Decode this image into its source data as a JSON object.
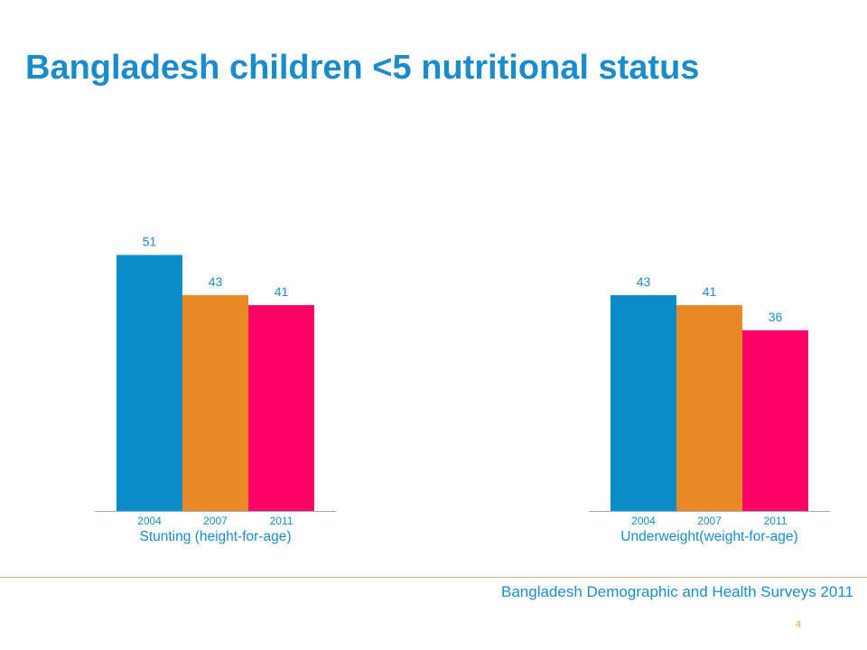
{
  "title": "Bangladesh children <5 nutritional status",
  "source": "Bangladesh Demographic and Health Surveys 2011",
  "page_number": "4",
  "colors": {
    "title": "#1a8ccc",
    "series_2004": "#0a8cc8",
    "series_2007": "#e98925",
    "series_2011": "#ff0066",
    "axis": "#8cb4c8",
    "label_text": "#1a8ccc",
    "footer_line": "#e0b48a",
    "page_number": "#f0a050"
  },
  "chart_data": {
    "type": "bar",
    "categories": [
      "Stunting (height-for-age)",
      "Underweight(weight-for-age)"
    ],
    "series": [
      {
        "name": "2004",
        "values": [
          51,
          43
        ]
      },
      {
        "name": "2007",
        "values": [
          43,
          41
        ]
      },
      {
        "name": "2011",
        "values": [
          41,
          36
        ]
      }
    ],
    "ylim": [
      0,
      60
    ],
    "title": "",
    "xlabel": "",
    "ylabel": "",
    "grid": false,
    "legend": "none"
  }
}
